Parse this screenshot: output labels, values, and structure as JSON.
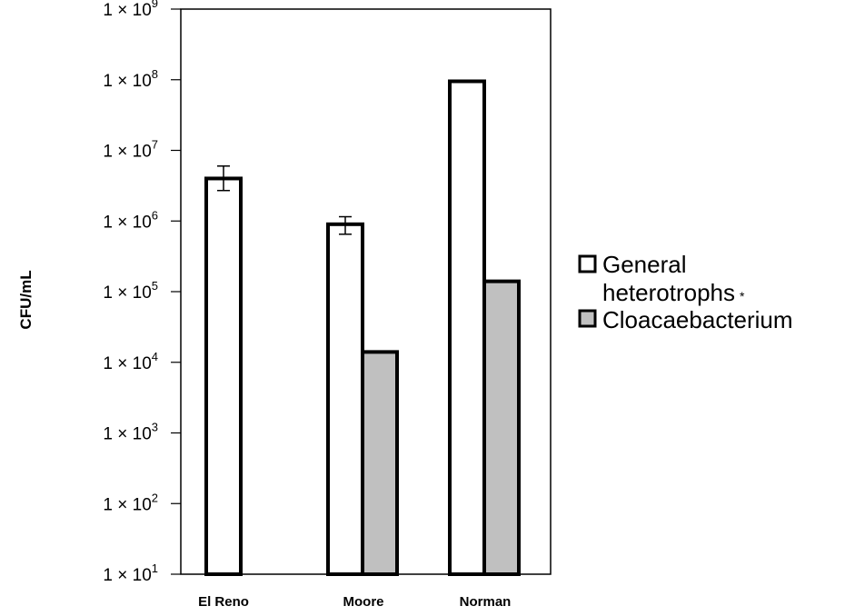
{
  "chart_data": {
    "type": "bar",
    "ylabel": "CFU/mL",
    "yscale": "log",
    "ylim": [
      10,
      1000000000
    ],
    "yticks": [
      {
        "base": "1 × 10",
        "exp": "1"
      },
      {
        "base": "1 × 10",
        "exp": "2"
      },
      {
        "base": "1 × 10",
        "exp": "3"
      },
      {
        "base": "1 × 10",
        "exp": "4"
      },
      {
        "base": "1 × 10",
        "exp": "5"
      },
      {
        "base": "1 × 10",
        "exp": "6"
      },
      {
        "base": "1 × 10",
        "exp": "7"
      },
      {
        "base": "1 × 10",
        "exp": "8"
      },
      {
        "base": "1 × 10",
        "exp": "9"
      }
    ],
    "categories": [
      "El Reno",
      "Moore",
      "Norman"
    ],
    "series": [
      {
        "name": "General heterotrophs",
        "legend_note": "*",
        "color": "#ffffff",
        "values": [
          4000000,
          900000,
          95000000
        ],
        "error": [
          [
            2700000,
            6000000
          ],
          [
            650000,
            1150000
          ],
          null
        ]
      },
      {
        "name": "Cloacaebacterium",
        "color": "#c0c0c0",
        "values": [
          null,
          14000,
          140000
        ],
        "error": [
          null,
          null,
          null
        ]
      }
    ],
    "grid": false,
    "legend_position": "right"
  }
}
